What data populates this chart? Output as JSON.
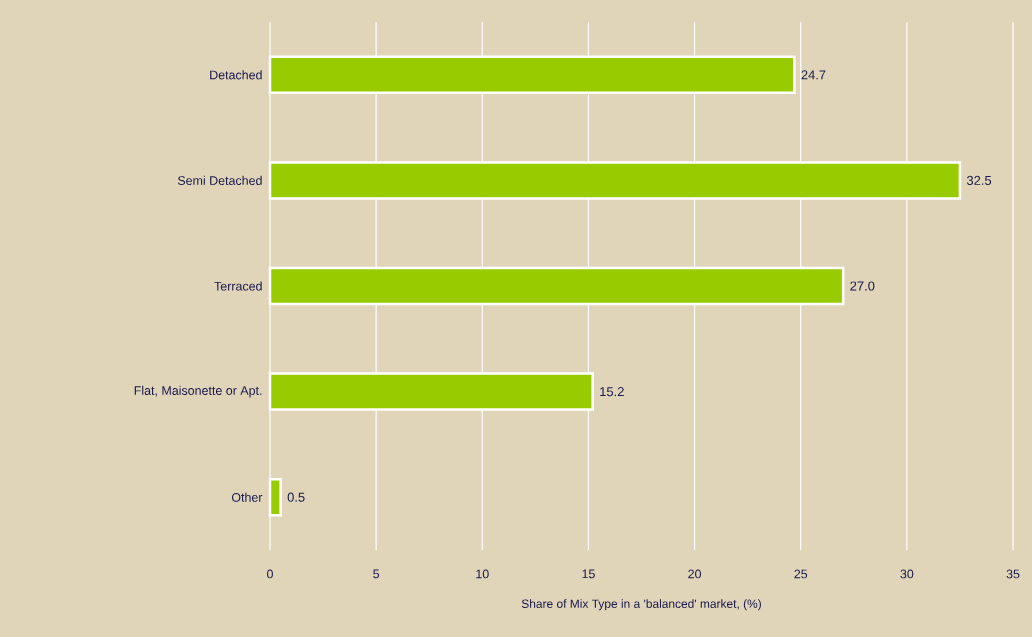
{
  "chart_data": {
    "type": "bar",
    "orientation": "horizontal",
    "categories": [
      "Detached",
      "Semi Detached",
      "Terraced",
      "Flat, Maisonette or Apt.",
      "Other"
    ],
    "values": [
      24.7,
      32.5,
      27.0,
      15.2,
      0.5
    ],
    "value_labels": [
      "24.7",
      "32.5",
      "27.0",
      "15.2",
      "0.5"
    ],
    "color": "#99cc00",
    "xlim": [
      0,
      35
    ],
    "xticks": [
      0,
      5,
      10,
      15,
      20,
      25,
      30,
      35
    ],
    "xlabel": "Share of Mix Type in a 'balanced' market, (%)",
    "grid": "x"
  }
}
